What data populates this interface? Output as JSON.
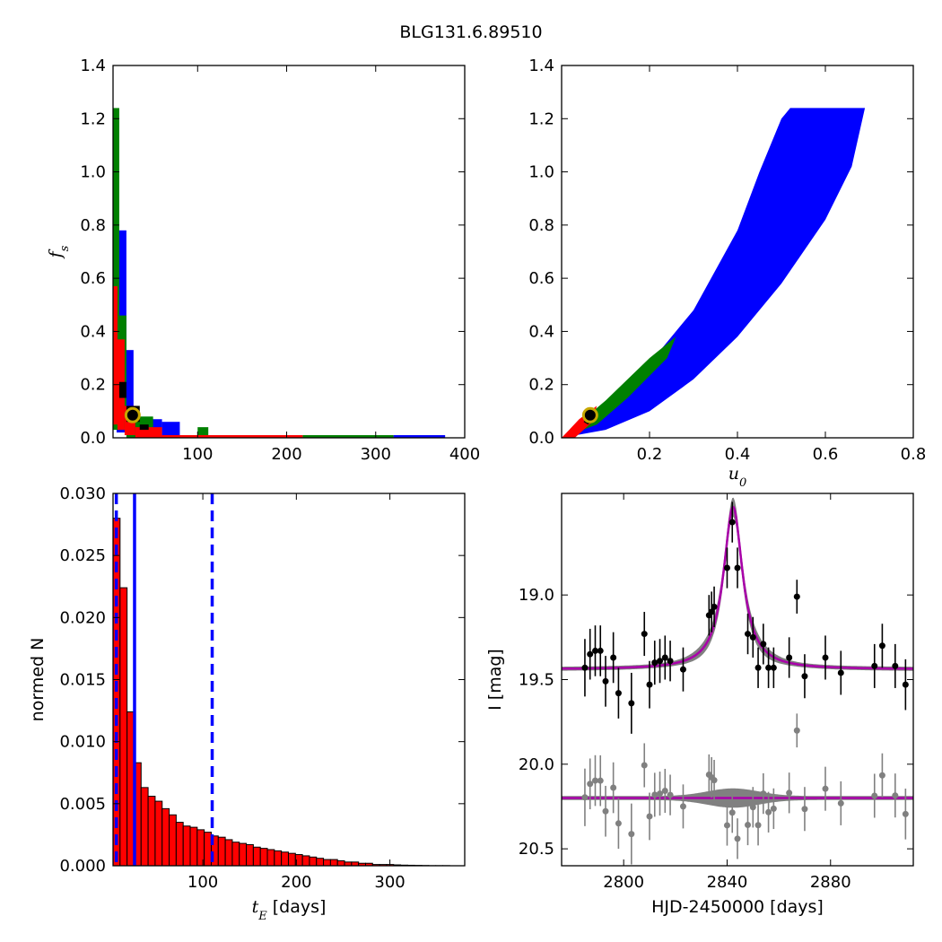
{
  "chart_data": [
    {
      "id": "fs_vs_tE",
      "type": "heatmap",
      "title": "BLG131.6.89510",
      "xlabel": "",
      "ylabel": "f_s",
      "xlim": [
        5,
        400
      ],
      "ylim": [
        0,
        1.4
      ],
      "xticks": [
        100,
        200,
        300,
        400
      ],
      "yticks": [
        0.0,
        0.2,
        0.4,
        0.6,
        0.8,
        1.0,
        1.2,
        1.4
      ],
      "colors": {
        "level_1": "#0000ff",
        "level_2": "#008000",
        "level_3": "#ff0000",
        "peak": "#000000",
        "marker_ring": "#c8a800"
      },
      "best_fit": {
        "x": 27,
        "y": 0.085
      },
      "regions": [
        {
          "level": "level_1",
          "x": [
            9,
            20
          ],
          "y": [
            0.78,
            0.02
          ]
        },
        {
          "level": "level_1",
          "x": [
            20,
            28
          ],
          "y": [
            0.33,
            0.02
          ]
        },
        {
          "level": "level_1",
          "x": [
            28,
            60
          ],
          "y": [
            0.07,
            0.0
          ]
        },
        {
          "level": "level_1",
          "x": [
            60,
            80
          ],
          "y": [
            0.06,
            0.0
          ]
        },
        {
          "level": "level_1",
          "x": [
            320,
            378
          ],
          "y": [
            0.01,
            0.0
          ]
        },
        {
          "level": "level_2",
          "x": [
            5,
            12
          ],
          "y": [
            1.24,
            0.03
          ]
        },
        {
          "level": "level_2",
          "x": [
            12,
            20
          ],
          "y": [
            0.46,
            0.03
          ]
        },
        {
          "level": "level_2",
          "x": [
            20,
            50
          ],
          "y": [
            0.08,
            0.0
          ]
        },
        {
          "level": "level_2",
          "x": [
            100,
            112
          ],
          "y": [
            0.04,
            0.0
          ]
        },
        {
          "level": "level_2",
          "x": [
            218,
            320
          ],
          "y": [
            0.01,
            0.0
          ]
        },
        {
          "level": "level_3",
          "x": [
            5,
            10
          ],
          "y": [
            0.57,
            0.05
          ]
        },
        {
          "level": "level_3",
          "x": [
            10,
            18
          ],
          "y": [
            0.37,
            0.03
          ]
        },
        {
          "level": "level_3",
          "x": [
            18,
            30
          ],
          "y": [
            0.12,
            0.01
          ]
        },
        {
          "level": "level_3",
          "x": [
            30,
            60
          ],
          "y": [
            0.04,
            0.0
          ]
        },
        {
          "level": "level_3",
          "x": [
            60,
            218
          ],
          "y": [
            0.01,
            0.0
          ]
        },
        {
          "level": "peak",
          "x": [
            12,
            20
          ],
          "y": [
            0.21,
            0.15
          ]
        },
        {
          "level": "peak",
          "x": [
            20,
            35
          ],
          "y": [
            0.12,
            0.06
          ]
        },
        {
          "level": "peak",
          "x": [
            35,
            45
          ],
          "y": [
            0.05,
            0.03
          ]
        }
      ]
    },
    {
      "id": "fs_vs_u0",
      "type": "heatmap",
      "title": "",
      "xlabel": "u_0",
      "ylabel": "",
      "xlim": [
        0,
        0.8
      ],
      "ylim": [
        0,
        1.4
      ],
      "xticks": [
        0.2,
        0.4,
        0.6,
        0.8
      ],
      "yticks": [
        0.0,
        0.2,
        0.4,
        0.6,
        0.8,
        1.0,
        1.2,
        1.4
      ],
      "colors": {
        "level_1": "#0000ff",
        "level_2": "#008000",
        "level_3": "#ff0000",
        "peak": "#000000",
        "marker_ring": "#c8a800"
      },
      "best_fit": {
        "x": 0.065,
        "y": 0.085
      },
      "upper_edge": [
        [
          0.0,
          0.0
        ],
        [
          0.1,
          0.12
        ],
        [
          0.2,
          0.28
        ],
        [
          0.3,
          0.48
        ],
        [
          0.4,
          0.78
        ],
        [
          0.45,
          1.0
        ],
        [
          0.5,
          1.2
        ],
        [
          0.52,
          1.24
        ],
        [
          0.69,
          1.24
        ]
      ],
      "lower_edge": [
        [
          0.69,
          1.24
        ],
        [
          0.66,
          1.02
        ],
        [
          0.6,
          0.82
        ],
        [
          0.5,
          0.58
        ],
        [
          0.4,
          0.38
        ],
        [
          0.3,
          0.22
        ],
        [
          0.2,
          0.1
        ],
        [
          0.1,
          0.03
        ],
        [
          0.0,
          0.0
        ]
      ],
      "inner_band_edge": [
        [
          0.0,
          0.0
        ],
        [
          0.1,
          0.14
        ],
        [
          0.2,
          0.3
        ],
        [
          0.26,
          0.38
        ],
        [
          0.24,
          0.3
        ],
        [
          0.15,
          0.15
        ],
        [
          0.08,
          0.05
        ],
        [
          0.0,
          0.0
        ]
      ],
      "core_edge": [
        [
          0.0,
          0.0
        ],
        [
          0.04,
          0.07
        ],
        [
          0.08,
          0.12
        ],
        [
          0.07,
          0.06
        ],
        [
          0.03,
          0.0
        ]
      ],
      "peak_edge": [
        [
          0.05,
          0.06
        ],
        [
          0.07,
          0.1
        ],
        [
          0.08,
          0.08
        ],
        [
          0.06,
          0.05
        ]
      ]
    },
    {
      "id": "tE_histogram",
      "type": "bar",
      "title": "",
      "xlabel": "t_E  [days]",
      "ylabel": "normed N",
      "xlim": [
        4,
        380
      ],
      "ylim": [
        0,
        0.03
      ],
      "xticks": [
        100,
        200,
        300
      ],
      "yticks": [
        0.0,
        0.005,
        0.01,
        0.015,
        0.02,
        0.025,
        0.03
      ],
      "ytick_labels": [
        "0.000",
        "0.005",
        "0.010",
        "0.015",
        "0.020",
        "0.025",
        "0.030"
      ],
      "bin_start": 4,
      "bin_width": 7.5,
      "values": [
        0.028,
        0.0224,
        0.0124,
        0.0083,
        0.0063,
        0.0056,
        0.0052,
        0.0046,
        0.0041,
        0.0035,
        0.0032,
        0.0031,
        0.0029,
        0.0027,
        0.0024,
        0.0023,
        0.0021,
        0.0019,
        0.0018,
        0.0017,
        0.0015,
        0.0014,
        0.0013,
        0.0012,
        0.0011,
        0.001,
        0.0009,
        0.0008,
        0.0007,
        0.0006,
        0.0005,
        0.0005,
        0.0004,
        0.0003,
        0.0003,
        0.0002,
        0.0002,
        0.0001,
        0.0001,
        0.0001,
        7e-05,
        5e-05,
        4e-05,
        3e-05,
        2e-05,
        1e-05,
        1e-05,
        1e-05,
        0.0,
        0.0
      ],
      "bar_color": "#ff0000",
      "vlines": [
        {
          "x": 27,
          "style": "solid",
          "color": "#0000ff"
        },
        {
          "x": 7.5,
          "style": "dashed",
          "color": "#0000ff"
        },
        {
          "x": 110,
          "style": "dashed",
          "color": "#0000ff"
        }
      ]
    },
    {
      "id": "light_curve",
      "type": "scatter",
      "title": "",
      "xlabel": "HJD-2450000 [days]",
      "ylabel": "I [mag]",
      "xlim": [
        2776,
        2912
      ],
      "ylim": [
        20.6,
        18.4
      ],
      "xticks": [
        2800,
        2840,
        2880
      ],
      "yticks": [
        19.0,
        19.5,
        20.0,
        20.5
      ],
      "ytick_labels": [
        "19.0",
        "19.5",
        "20.0",
        "20.5"
      ],
      "model": {
        "t0": 2842.3,
        "baseline": 19.44,
        "amplitude": 0.96,
        "width": 4.5,
        "color": "#aa00aa"
      },
      "residual_offset": 20.2,
      "points": [
        {
          "x": 2785,
          "y": 19.43,
          "err": 0.17
        },
        {
          "x": 2787,
          "y": 19.35,
          "err": 0.15
        },
        {
          "x": 2789,
          "y": 19.33,
          "err": 0.15
        },
        {
          "x": 2791,
          "y": 19.33,
          "err": 0.15
        },
        {
          "x": 2793,
          "y": 19.51,
          "err": 0.15
        },
        {
          "x": 2796,
          "y": 19.37,
          "err": 0.15
        },
        {
          "x": 2798,
          "y": 19.58,
          "err": 0.15
        },
        {
          "x": 2803,
          "y": 19.64,
          "err": 0.18
        },
        {
          "x": 2808,
          "y": 19.23,
          "err": 0.13
        },
        {
          "x": 2810,
          "y": 19.53,
          "err": 0.14
        },
        {
          "x": 2812,
          "y": 19.4,
          "err": 0.13
        },
        {
          "x": 2814,
          "y": 19.39,
          "err": 0.13
        },
        {
          "x": 2816,
          "y": 19.37,
          "err": 0.13
        },
        {
          "x": 2818,
          "y": 19.39,
          "err": 0.12
        },
        {
          "x": 2823,
          "y": 19.44,
          "err": 0.13
        },
        {
          "x": 2833,
          "y": 19.12,
          "err": 0.12
        },
        {
          "x": 2834,
          "y": 19.1,
          "err": 0.12
        },
        {
          "x": 2835,
          "y": 19.07,
          "err": 0.12
        },
        {
          "x": 2840,
          "y": 18.84,
          "err": 0.12
        },
        {
          "x": 2842,
          "y": 18.57,
          "err": 0.12
        },
        {
          "x": 2844,
          "y": 18.84,
          "err": 0.12
        },
        {
          "x": 2848,
          "y": 19.23,
          "err": 0.12
        },
        {
          "x": 2850,
          "y": 19.25,
          "err": 0.12
        },
        {
          "x": 2852,
          "y": 19.43,
          "err": 0.12
        },
        {
          "x": 2854,
          "y": 19.29,
          "err": 0.12
        },
        {
          "x": 2856,
          "y": 19.43,
          "err": 0.12
        },
        {
          "x": 2858,
          "y": 19.43,
          "err": 0.12
        },
        {
          "x": 2864,
          "y": 19.37,
          "err": 0.12
        },
        {
          "x": 2867,
          "y": 19.01,
          "err": 0.1
        },
        {
          "x": 2870,
          "y": 19.48,
          "err": 0.13
        },
        {
          "x": 2878,
          "y": 19.37,
          "err": 0.13
        },
        {
          "x": 2884,
          "y": 19.46,
          "err": 0.13
        },
        {
          "x": 2897,
          "y": 19.42,
          "err": 0.13
        },
        {
          "x": 2900,
          "y": 19.3,
          "err": 0.13
        },
        {
          "x": 2905,
          "y": 19.42,
          "err": 0.13
        },
        {
          "x": 2909,
          "y": 19.53,
          "err": 0.15
        }
      ]
    }
  ]
}
